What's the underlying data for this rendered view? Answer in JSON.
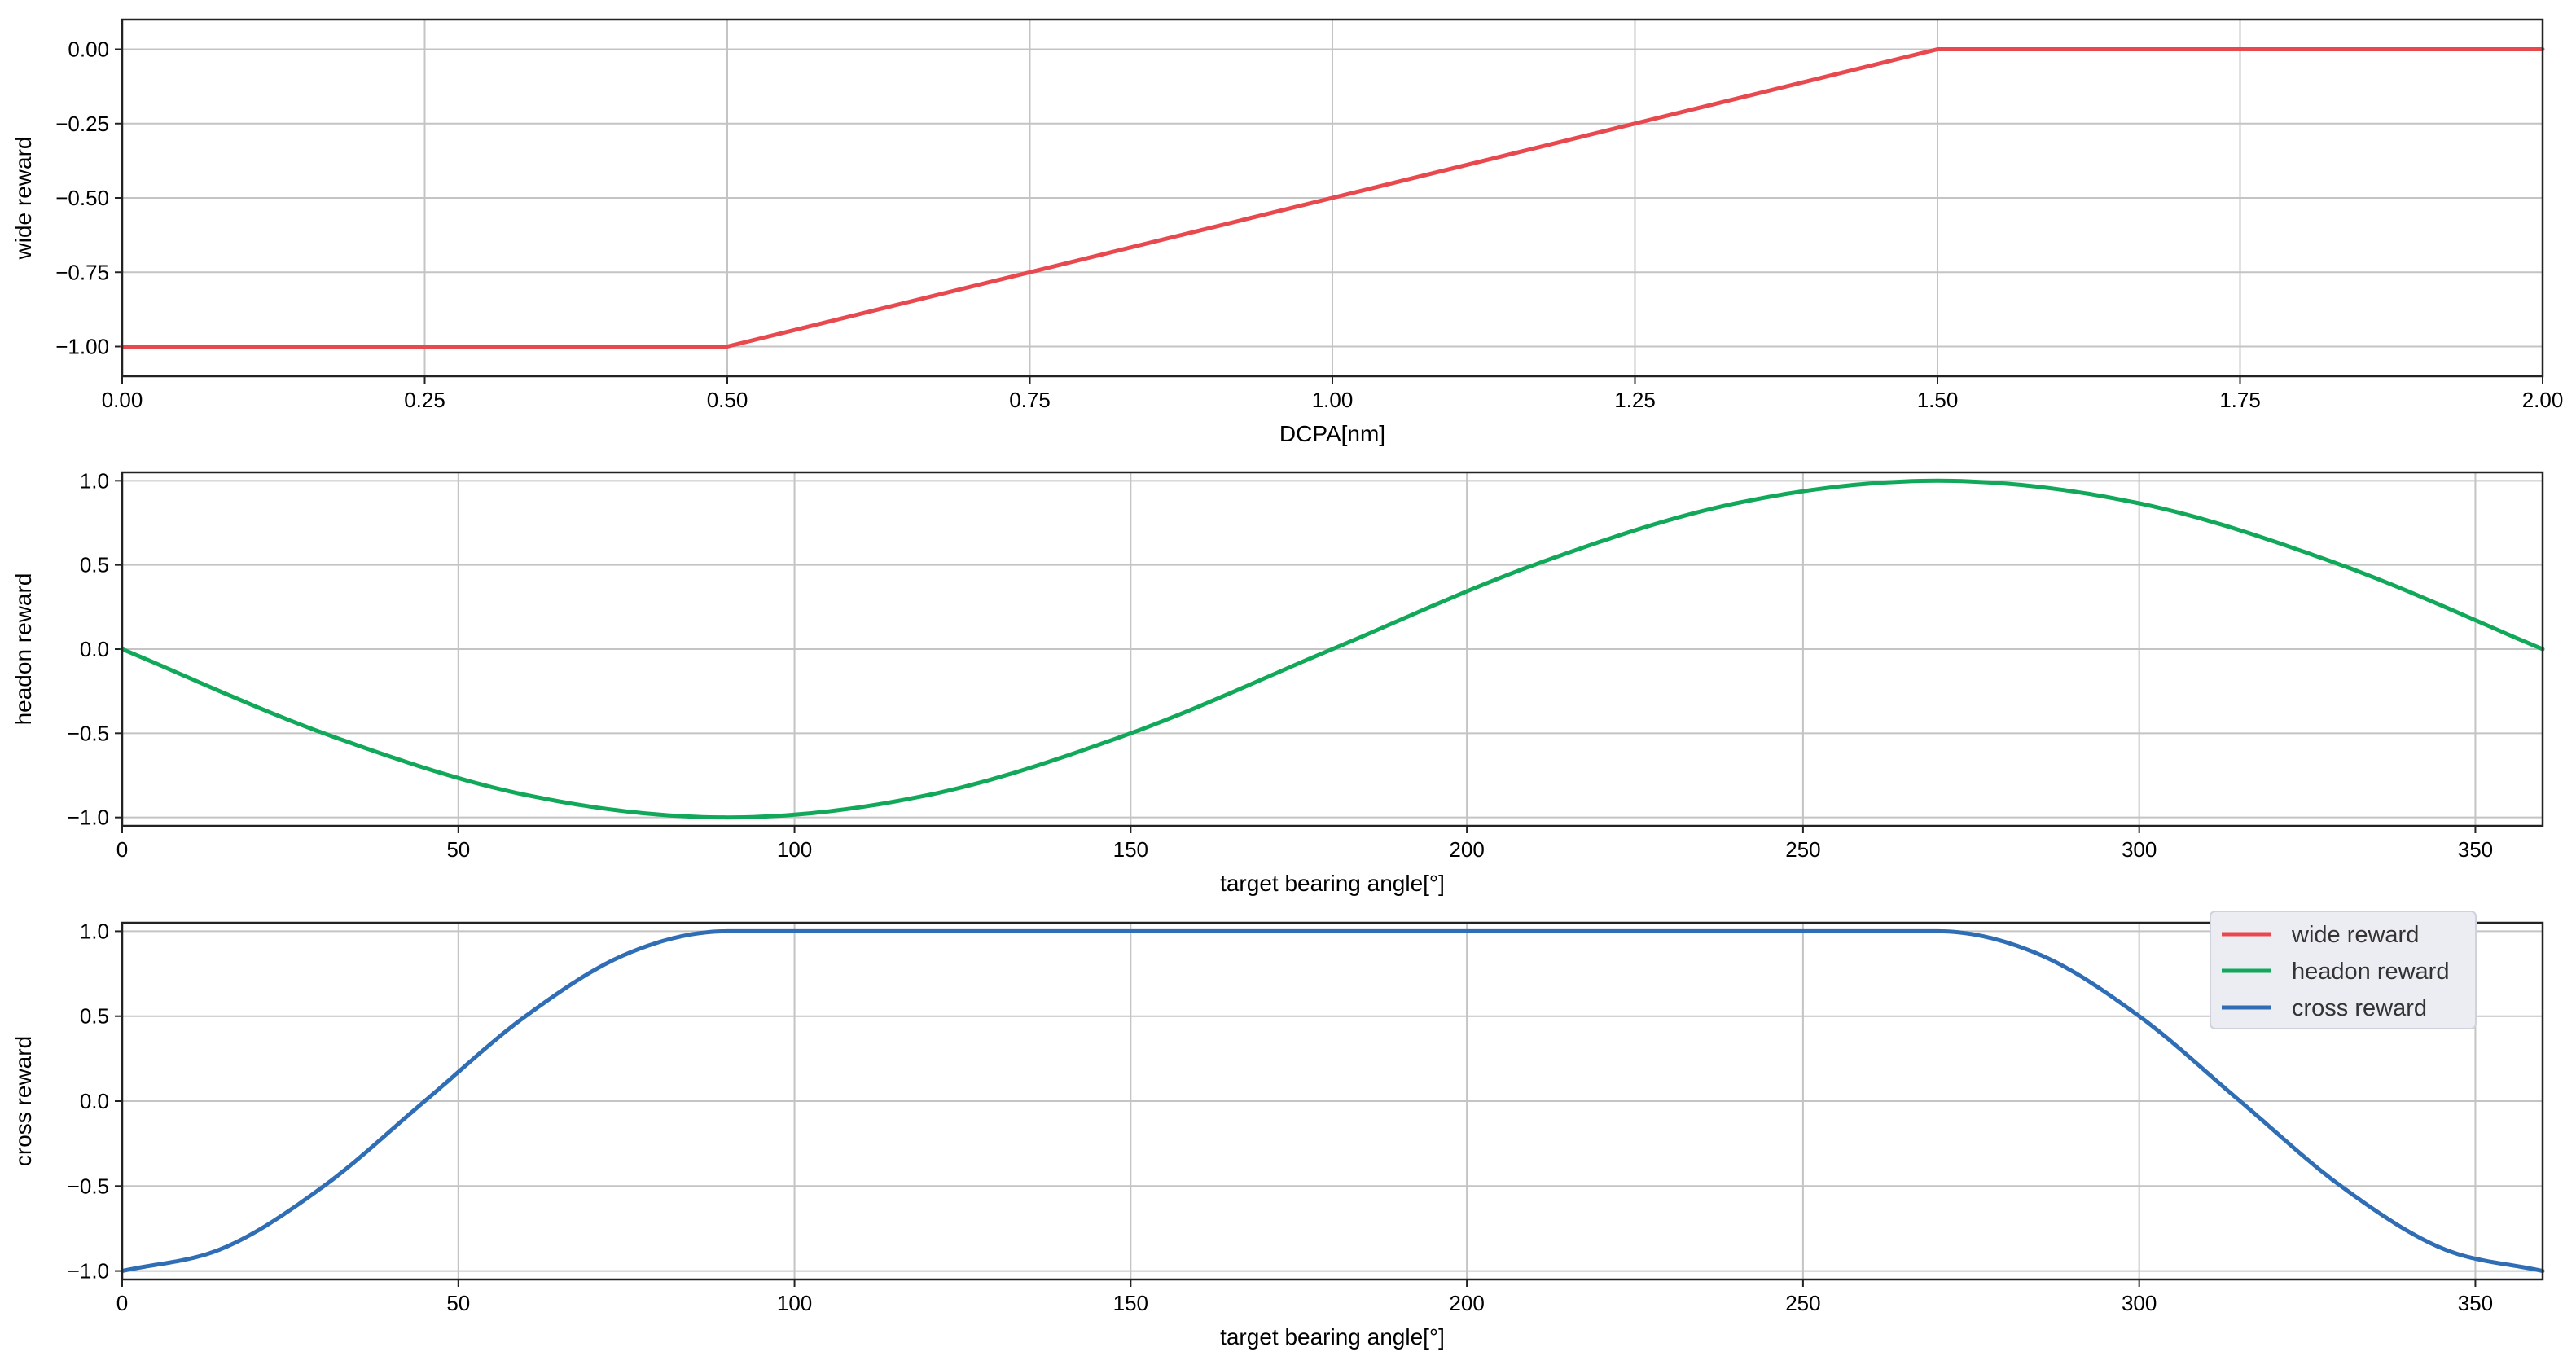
{
  "chart_data": [
    {
      "type": "line",
      "xlabel": "DCPA[nm]",
      "ylabel": "wide reward",
      "xlim": [
        0,
        2
      ],
      "ylim": [
        -1.1,
        0.1
      ],
      "xticks": [
        0,
        0.25,
        0.5,
        0.75,
        1.0,
        1.25,
        1.5,
        1.75,
        2.0
      ],
      "xtick_labels": [
        "0.00",
        "0.25",
        "0.50",
        "0.75",
        "1.00",
        "1.25",
        "1.50",
        "1.75",
        "2.00"
      ],
      "yticks": [
        0,
        -0.25,
        -0.5,
        -0.75,
        -1.0
      ],
      "ytick_labels": [
        "0.00",
        "−0.25",
        "−0.50",
        "−0.75",
        "−1.00"
      ],
      "grid": true,
      "series": [
        {
          "color": "#e8494e",
          "x": [
            0,
            0.5,
            1.5,
            2.0
          ],
          "y": [
            -1.0,
            -1.0,
            0.0,
            0.0
          ]
        }
      ]
    },
    {
      "type": "line",
      "xlabel": "target bearing angle[°]",
      "ylabel": "headon reward",
      "xlim": [
        0,
        360
      ],
      "ylim": [
        -1.05,
        1.05
      ],
      "xticks": [
        0,
        50,
        100,
        150,
        200,
        250,
        300,
        350
      ],
      "xtick_labels": [
        "0",
        "50",
        "100",
        "150",
        "200",
        "250",
        "300",
        "350"
      ],
      "yticks": [
        1.0,
        0.5,
        0.0,
        -0.5,
        -1.0
      ],
      "ytick_labels": [
        "1.0",
        "0.5",
        "0.0",
        "−0.5",
        "−1.0"
      ],
      "grid": true,
      "series": [
        {
          "color": "#12a85a",
          "x": [
            0,
            30,
            60,
            90,
            120,
            150,
            180,
            210,
            240,
            270,
            300,
            330,
            360
          ],
          "y": [
            0.0,
            -0.5,
            -0.866,
            -1.0,
            -0.866,
            -0.5,
            0.0,
            0.5,
            0.866,
            1.0,
            0.866,
            0.5,
            0.0
          ]
        }
      ]
    },
    {
      "type": "line",
      "xlabel": "target bearing angle[°]",
      "ylabel": "cross reward",
      "xlim": [
        0,
        360
      ],
      "ylim": [
        -1.05,
        1.05
      ],
      "xticks": [
        0,
        50,
        100,
        150,
        200,
        250,
        300,
        350
      ],
      "xtick_labels": [
        "0",
        "50",
        "100",
        "150",
        "200",
        "250",
        "300",
        "350"
      ],
      "yticks": [
        1.0,
        0.5,
        0.0,
        -0.5,
        -1.0
      ],
      "ytick_labels": [
        "1.0",
        "0.5",
        "0.0",
        "−0.5",
        "−1.0"
      ],
      "grid": true,
      "legend": {
        "placement": "top-right",
        "entries": [
          {
            "label": "wide reward",
            "color": "#e8494e"
          },
          {
            "label": "headon reward",
            "color": "#12a85a"
          },
          {
            "label": "cross reward",
            "color": "#2f6db5"
          }
        ]
      },
      "series": [
        {
          "color": "#2f6db5",
          "x": [
            0,
            15,
            30,
            45,
            60,
            75,
            90,
            180,
            270,
            285,
            300,
            315,
            330,
            345,
            360
          ],
          "y": [
            -1.0,
            -0.866,
            -0.5,
            0.0,
            0.5,
            0.866,
            1.0,
            1.0,
            1.0,
            0.866,
            0.5,
            0.0,
            -0.5,
            -0.866,
            -1.0
          ]
        }
      ]
    }
  ]
}
